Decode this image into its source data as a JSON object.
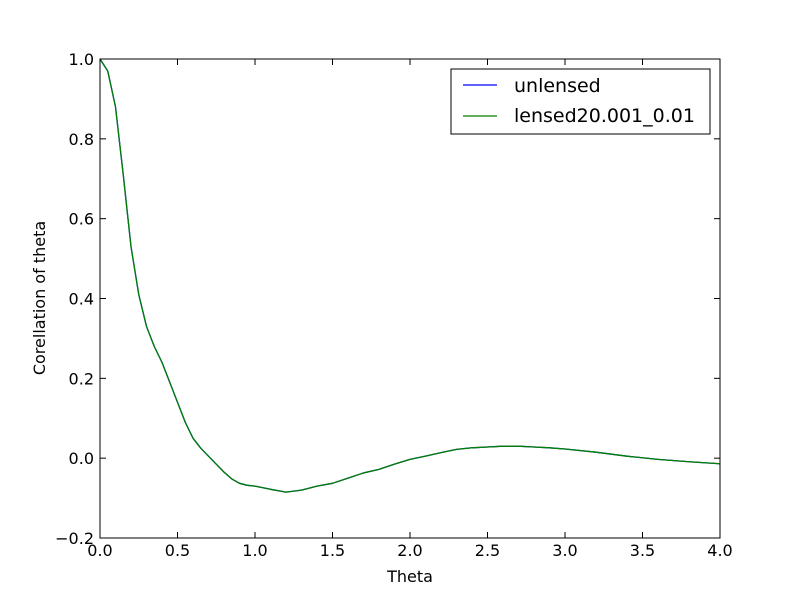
{
  "chart_data": {
    "type": "line",
    "xlabel": "Theta",
    "ylabel": "Corellation of theta",
    "xlim": [
      0.0,
      4.0
    ],
    "ylim": [
      -0.2,
      1.0
    ],
    "xticks": [
      "0.0",
      "0.5",
      "1.0",
      "1.5",
      "2.0",
      "2.5",
      "3.0",
      "3.5",
      "4.0"
    ],
    "yticks": [
      "−0.2",
      "0.0",
      "0.2",
      "0.4",
      "0.6",
      "0.8",
      "1.0"
    ],
    "grid": false,
    "legend_position": "top-right",
    "series": [
      {
        "name": "unlensed",
        "color": "#0000ff",
        "x": [
          0.0,
          0.05,
          0.1,
          0.15,
          0.2,
          0.25,
          0.3,
          0.35,
          0.4,
          0.45,
          0.5,
          0.55,
          0.6,
          0.65,
          0.7,
          0.75,
          0.8,
          0.85,
          0.9,
          0.95,
          1.0,
          1.1,
          1.2,
          1.3,
          1.4,
          1.5,
          1.6,
          1.7,
          1.8,
          1.9,
          2.0,
          2.1,
          2.2,
          2.3,
          2.4,
          2.5,
          2.6,
          2.7,
          2.8,
          2.9,
          3.0,
          3.2,
          3.4,
          3.6,
          3.8,
          4.0
        ],
        "y": [
          1.0,
          0.97,
          0.88,
          0.71,
          0.53,
          0.41,
          0.33,
          0.28,
          0.24,
          0.19,
          0.14,
          0.09,
          0.05,
          0.025,
          0.005,
          -0.015,
          -0.035,
          -0.052,
          -0.063,
          -0.068,
          -0.07,
          -0.078,
          -0.085,
          -0.08,
          -0.07,
          -0.063,
          -0.05,
          -0.037,
          -0.028,
          -0.015,
          -0.003,
          0.005,
          0.014,
          0.022,
          0.026,
          0.028,
          0.03,
          0.03,
          0.028,
          0.026,
          0.023,
          0.015,
          0.005,
          -0.003,
          -0.009,
          -0.014
        ]
      },
      {
        "name": "lensed20.001_0.01",
        "color": "#008000",
        "x": [
          0.0,
          0.05,
          0.1,
          0.15,
          0.2,
          0.25,
          0.3,
          0.35,
          0.4,
          0.45,
          0.5,
          0.55,
          0.6,
          0.65,
          0.7,
          0.75,
          0.8,
          0.85,
          0.9,
          0.95,
          1.0,
          1.1,
          1.2,
          1.3,
          1.4,
          1.5,
          1.6,
          1.7,
          1.8,
          1.9,
          2.0,
          2.1,
          2.2,
          2.3,
          2.4,
          2.5,
          2.6,
          2.7,
          2.8,
          2.9,
          3.0,
          3.2,
          3.4,
          3.6,
          3.8,
          4.0
        ],
        "y": [
          1.0,
          0.97,
          0.88,
          0.71,
          0.53,
          0.41,
          0.33,
          0.28,
          0.24,
          0.19,
          0.14,
          0.09,
          0.05,
          0.025,
          0.005,
          -0.015,
          -0.035,
          -0.052,
          -0.063,
          -0.068,
          -0.07,
          -0.078,
          -0.085,
          -0.08,
          -0.07,
          -0.063,
          -0.05,
          -0.037,
          -0.028,
          -0.015,
          -0.003,
          0.005,
          0.014,
          0.022,
          0.026,
          0.028,
          0.03,
          0.03,
          0.028,
          0.026,
          0.023,
          0.015,
          0.005,
          -0.003,
          -0.009,
          -0.014
        ]
      }
    ]
  }
}
